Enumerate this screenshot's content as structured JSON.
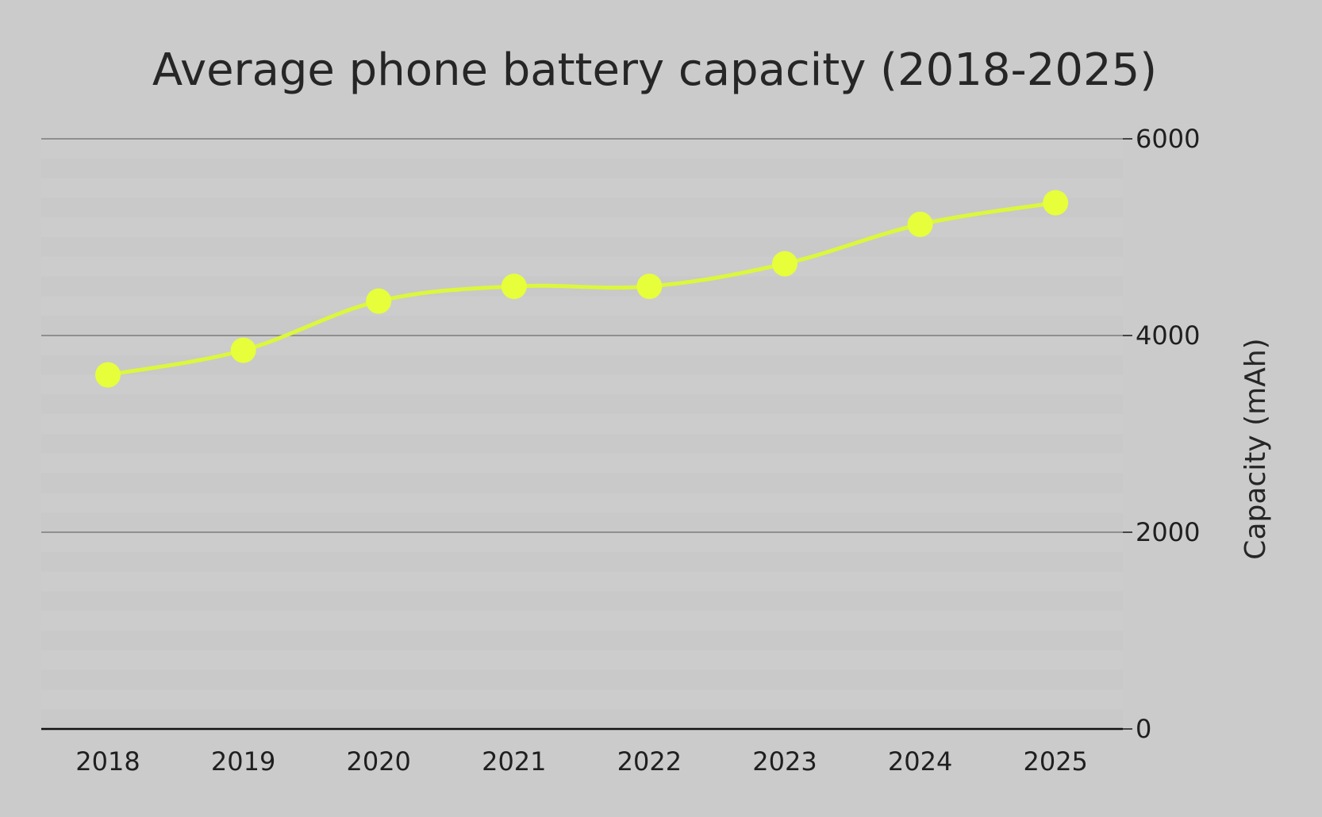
{
  "chart_data": {
    "type": "line",
    "title": "Average phone battery capacity (2018-2025)",
    "xlabel": "",
    "ylabel": "Capacity (mAh)",
    "categories": [
      "2018",
      "2019",
      "2020",
      "2021",
      "2022",
      "2023",
      "2024",
      "2025"
    ],
    "series": [
      {
        "values": [
          3600,
          3850,
          4350,
          4500,
          4500,
          4730,
          5130,
          5350
        ]
      }
    ],
    "ylim": [
      0,
      6000
    ],
    "yticks": [
      0,
      2000,
      4000,
      6000
    ],
    "y_axis_side": "right",
    "grid": true,
    "legend": "none",
    "line_style": "smooth",
    "colors": {
      "background": "#cbcbcb",
      "line": "#dcf73c",
      "marker": "#e6ff3a",
      "grid": "#8f8f8f",
      "baseline": "#111111"
    }
  }
}
